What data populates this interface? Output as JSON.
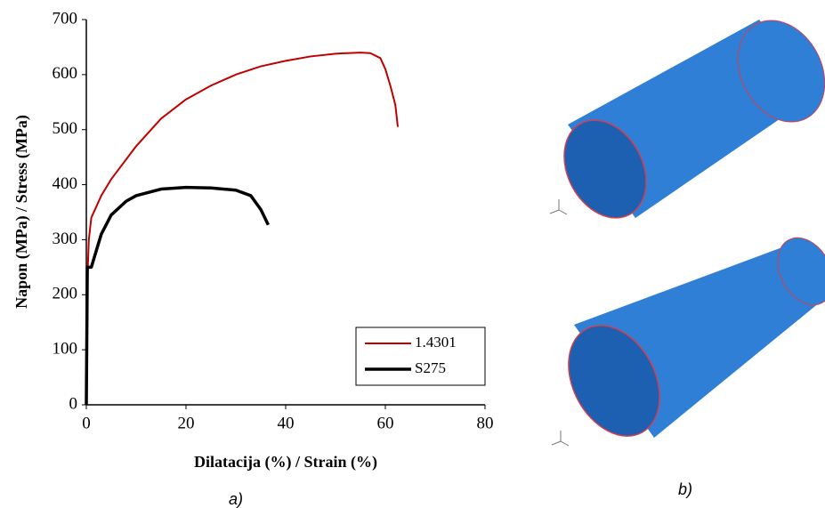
{
  "chart_data": {
    "type": "line",
    "xlabel": "Dilatacija (%) / Strain (%)",
    "ylabel": "Napon (MPa) / Stress (MPa)",
    "xlim": [
      0,
      80
    ],
    "xticks": [
      0,
      20,
      40,
      60,
      80
    ],
    "ylim": [
      0,
      700
    ],
    "yticks": [
      0,
      100,
      200,
      300,
      400,
      500,
      600,
      700
    ],
    "grid": false,
    "legend": "lower right",
    "series": [
      {
        "name": "1.4301",
        "color": "#c00000",
        "x": [
          0,
          0.3,
          0.5,
          1,
          3,
          5,
          10,
          15,
          20,
          25,
          30,
          35,
          40,
          45,
          50,
          55,
          57,
          59,
          60,
          61,
          62,
          62.5
        ],
        "values": [
          0,
          250,
          300,
          340,
          380,
          410,
          470,
          520,
          555,
          580,
          600,
          615,
          625,
          633,
          638,
          640,
          639,
          630,
          610,
          580,
          545,
          505
        ]
      },
      {
        "name": "S275",
        "color": "#000000",
        "x": [
          0,
          0.2,
          1,
          2,
          3,
          5,
          8,
          10,
          15,
          20,
          25,
          30,
          33,
          35,
          36.5
        ],
        "values": [
          0,
          250,
          250,
          280,
          310,
          345,
          370,
          380,
          392,
          395,
          394,
          390,
          380,
          355,
          327
        ]
      }
    ]
  },
  "captions": [
    "a)",
    "b)"
  ]
}
